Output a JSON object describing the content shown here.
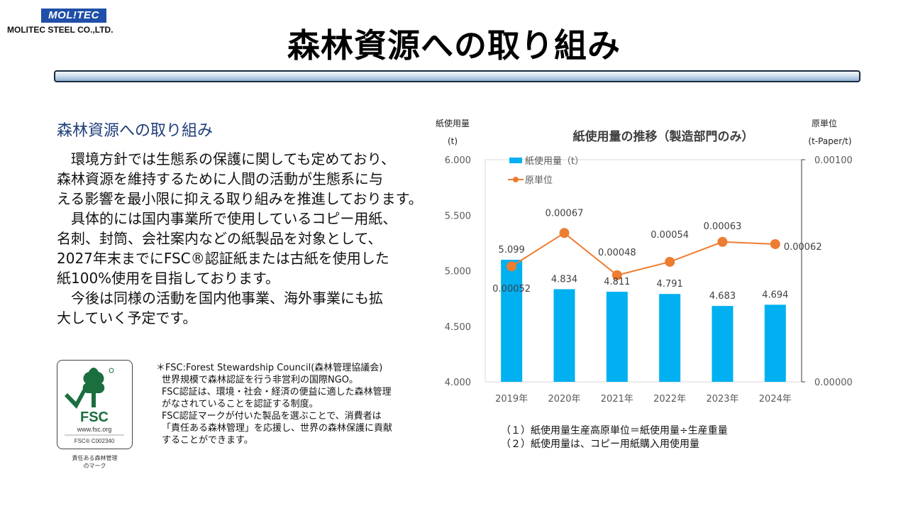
{
  "logo": {
    "mark": "MOL!TEC",
    "company": "MOLITEC STEEL CO.,LTD."
  },
  "page_title": "森林資源への取り組み",
  "section_heading": "森林資源への取り組み",
  "body_lines": [
    "　環境方針では生態系の保護に関しても定めており、",
    "森林資源を維持するために人間の活動が生態系に与",
    "える影響を最小限に抑える取り組みを推進しております。",
    "　具体的には国内事業所で使用しているコピー用紙、",
    "名刺、封筒、会社案内などの紙製品を対象として、",
    "2027年末までにFSC®認証紙または古紙を使用した",
    "紙100%使用を目指しております。",
    "　今後は同様の活動を国内他事業、海外事業にも拡",
    "大していく予定です。"
  ],
  "fsc_logo": {
    "mark": "FSC",
    "url": "www.fsc.org",
    "code": "FSC® C002340",
    "caption_lines": [
      "責任ある森林管理",
      "のマーク"
    ],
    "color": "#1b6e3e"
  },
  "fsc_note_lines": [
    "＊FSC:Forest Stewardship Council(森林管理協議会)",
    "世界規模で森林認証を行う非営利の国際NGO。",
    "FSC認証は、環境・社会・経済の便益に適した森林管理",
    "がなされていることを認証する制度。",
    "FSC認証マークが付いた製品を選ぶことで、消費者は",
    "「責任ある森林管理」を応援し、世界の森林保護に貢献",
    "することができます。"
  ],
  "chart_data": {
    "type": "bar",
    "title": "紙使用量の推移（製造部門のみ）",
    "categories": [
      "2019年",
      "2020年",
      "2021年",
      "2022年",
      "2023年",
      "2024年"
    ],
    "y_left_label": [
      "紙使用量",
      "(t)"
    ],
    "y_right_label": [
      "原単位",
      "(t-Paper/t)"
    ],
    "y_left_ticks": [
      "6.000",
      "5.500",
      "5.000",
      "4.500",
      "4.000"
    ],
    "y_right_ticks": [
      "0.00100",
      "0.00000"
    ],
    "ylim_left": [
      4.0,
      6.0
    ],
    "ylim_right": [
      0.0,
      0.001
    ],
    "legend_placement": "top-left",
    "series": [
      {
        "name": "紙使用量（t）",
        "type": "bar",
        "axis": "left",
        "color": "#00b0f0",
        "values": [
          5.099,
          4.834,
          4.811,
          4.791,
          4.683,
          4.694
        ],
        "labels": [
          "5.099",
          "4.834",
          "4.811",
          "4.791",
          "4.683",
          "4.694"
        ]
      },
      {
        "name": "原単位",
        "type": "line",
        "axis": "right",
        "color": "#ed7d31",
        "values": [
          0.00052,
          0.00067,
          0.00048,
          0.00054,
          0.00063,
          0.00062
        ],
        "labels": [
          "0.00052",
          "0.00067",
          "0.00048",
          "0.00054",
          "0.00063",
          "0.00062"
        ]
      }
    ]
  },
  "footnotes": [
    "（１）紙使用量生産高原単位＝紙使用量÷生産重量",
    "（２）紙使用量は、コピー用紙購入用使用量"
  ]
}
